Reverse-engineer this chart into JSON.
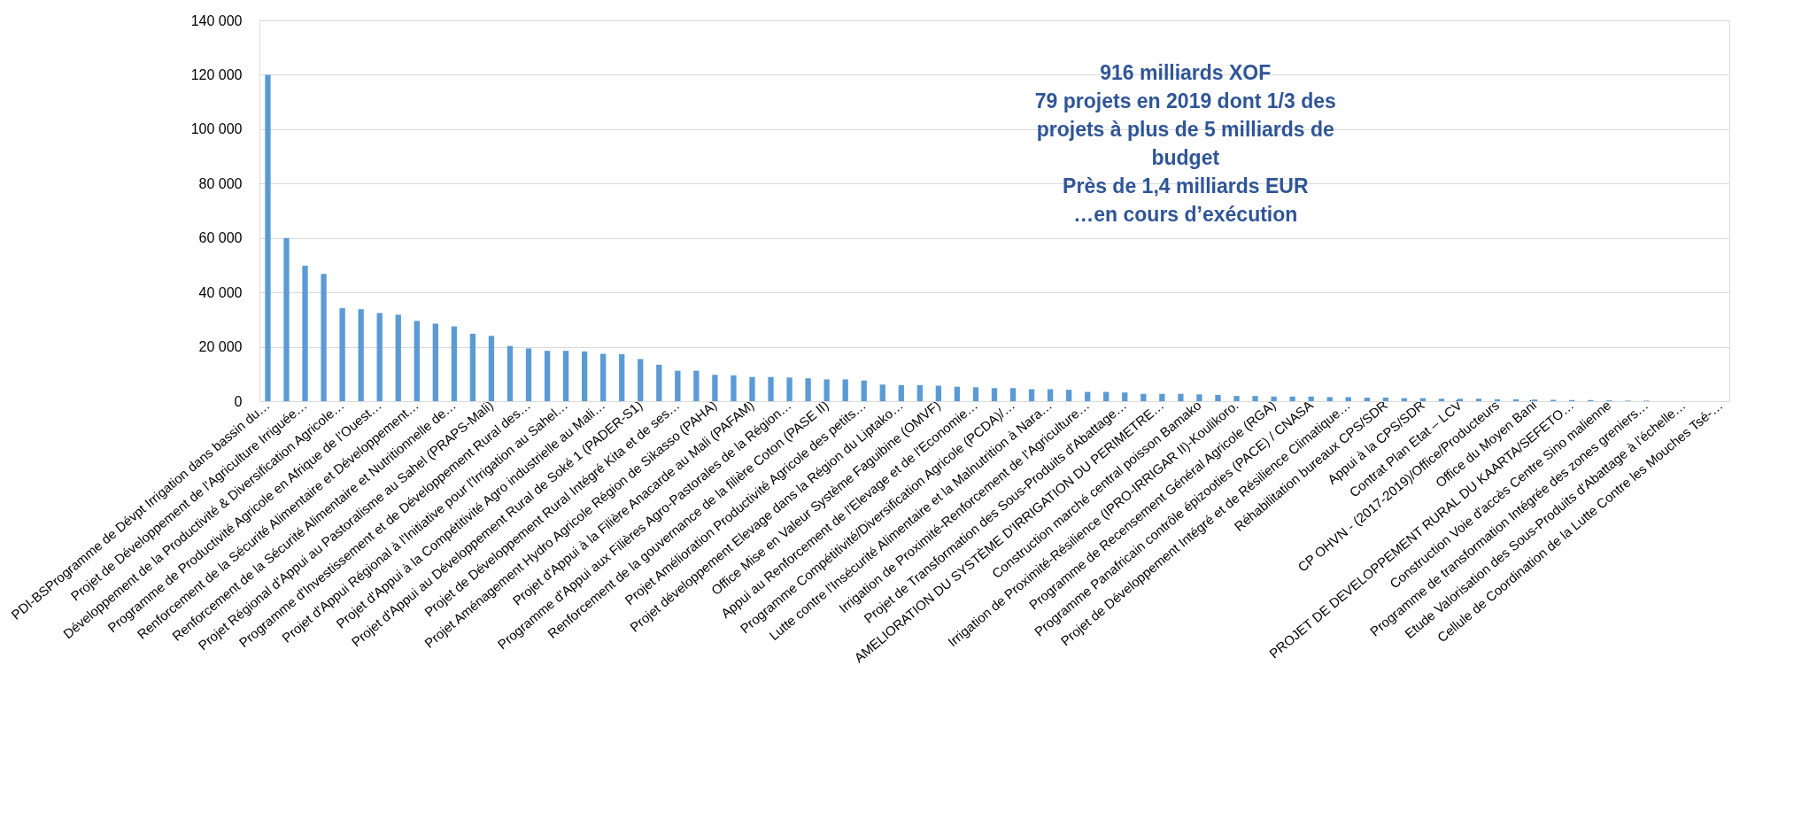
{
  "chart_data": {
    "type": "bar",
    "categories": [
      "PDI-BSProgramme de Dévpt Irrigation dans bassin du…",
      null,
      "Projet de Développement de l'Agriculture Irriguée…",
      null,
      "Développement de la Productivité & Diversification Agricole…",
      null,
      "Programme de Productivité Agricole en Afrique de l’Ouest…",
      null,
      "Renforcement de la Sécurité Alimentaire et Développement…",
      null,
      "Renforcement de la Sécurité Alimentaire et Nutritionnelle de…",
      null,
      "Projet Régional d'Appui au Pastoralisme au Sahel (PRAPS-Mali)",
      null,
      "Programme d'Investissement et de Développement Rural des…",
      null,
      "Projet d'Appui Régional à l'Initiative pour l'Irrigation au Sahel…",
      null,
      "Projet d'Appui à la Compétitivité Agro industrielle au Mali…",
      null,
      "Projet d'Appui au Développement Rural de Soké 1 (PADER-S1)",
      null,
      "Projet de Développement Rural Intégré  Kita et de ses…",
      null,
      "Projet Aménagement Hydro Agricole Région de Sikasso (PAHA)",
      null,
      "Projet d'Appui à la Filière Anacarde au Mali (PAFAM)",
      null,
      "Programme d'Appui aux Filières Agro-Pastorales de la Région…",
      null,
      "Renforcement de la gouvernance de la filière Coton (PASE II)",
      null,
      "Projet Amélioration Productivité Agricole des petits…",
      null,
      "Projet développement Elevage dans la Région du Liptako…",
      null,
      "Office Mise en Valeur Système Faguibine (OMVF)",
      null,
      "Appui au Renforcement de l'Elevage et de l'Economie…",
      null,
      "Programme Compétitivité/Diversification Agricole (PCDA)/…",
      null,
      "Lutte contre l'Insécurité Alimentaire et la Malnutrition à Nara…",
      null,
      "Irrigation de Proximité-Renforcement de l’Agriculture…",
      null,
      "Projet de Transformation des Sous-Produits d'Abattage…",
      null,
      "AMELIORATION DU SYSTÈME D'IRRIGATION DU PERIMETRE…",
      null,
      "Construction marché central poisson Bamako",
      null,
      "Irrigation de Proximité-Résilience (IPRO-IRRIGAR II)-Koulikoro.",
      null,
      "Programme de Recensement Général Agricole (RGA)",
      null,
      "Programme Panafricain contrôle épizooties (PACE) / CNASA",
      null,
      "Projet de Développement Intégré et de Résilience Climatique…",
      null,
      "Réhabilitation bureaux CPS/SDR",
      null,
      "Appui à la CPS/SDR",
      null,
      "Contrat Plan Etat – LCV",
      null,
      "CP OHVN - (2017-2019)/Office/Producteurs",
      null,
      "Office du Moyen Bani",
      null,
      "PROJET DE DEVELOPPEMENT RURAL DU KAARTA/SEFETO…",
      null,
      "Construction Voie d'accès Centre Sino malienne",
      null,
      "Programme de transformation Intégrée des zones greniers…",
      null,
      "Etude Valorisation des Sous-Produits d'Abattage à l'échelle…",
      null,
      "Cellule de Coordination de la Lutte Contre les Mouches Tsé-…"
    ],
    "values": [
      120000,
      60000,
      49800,
      46800,
      34200,
      33800,
      32400,
      31800,
      29500,
      28500,
      27500,
      24800,
      24000,
      20300,
      19400,
      18500,
      18500,
      18300,
      17400,
      17300,
      15500,
      13400,
      11200,
      11200,
      9700,
      9500,
      8900,
      8900,
      8700,
      8400,
      8000,
      8000,
      7600,
      6100,
      5900,
      5900,
      5700,
      5300,
      5100,
      4800,
      4800,
      4400,
      4400,
      4200,
      3400,
      3400,
      3200,
      2700,
      2700,
      2700,
      2500,
      2300,
      1900,
      1900,
      1700,
      1700,
      1700,
      1500,
      1500,
      1300,
      1300,
      1100,
      1100,
      900,
      900,
      900,
      700,
      700,
      600,
      500,
      400,
      400,
      300,
      200,
      200,
      null,
      null,
      null,
      null
    ],
    "color": "#5b9bd5",
    "ylim": [
      0,
      140000
    ],
    "yticks": [
      {
        "value": 0,
        "label": "0"
      },
      {
        "value": 20000,
        "label": "20 000"
      },
      {
        "value": 40000,
        "label": "40 000"
      },
      {
        "value": 60000,
        "label": "60 000"
      },
      {
        "value": 80000,
        "label": "80 000"
      },
      {
        "value": 100000,
        "label": "100 000"
      },
      {
        "value": 120000,
        "label": "120 000"
      },
      {
        "value": 140000,
        "label": "140 000"
      }
    ],
    "grid": "y",
    "annotations": [
      "916 milliards XOF",
      "79 projets en 2019 dont 1/3 des",
      "projets à plus de 5 milliards de",
      "budget",
      "Près de 1,4 milliards EUR",
      "…en cours d’exécution"
    ]
  }
}
